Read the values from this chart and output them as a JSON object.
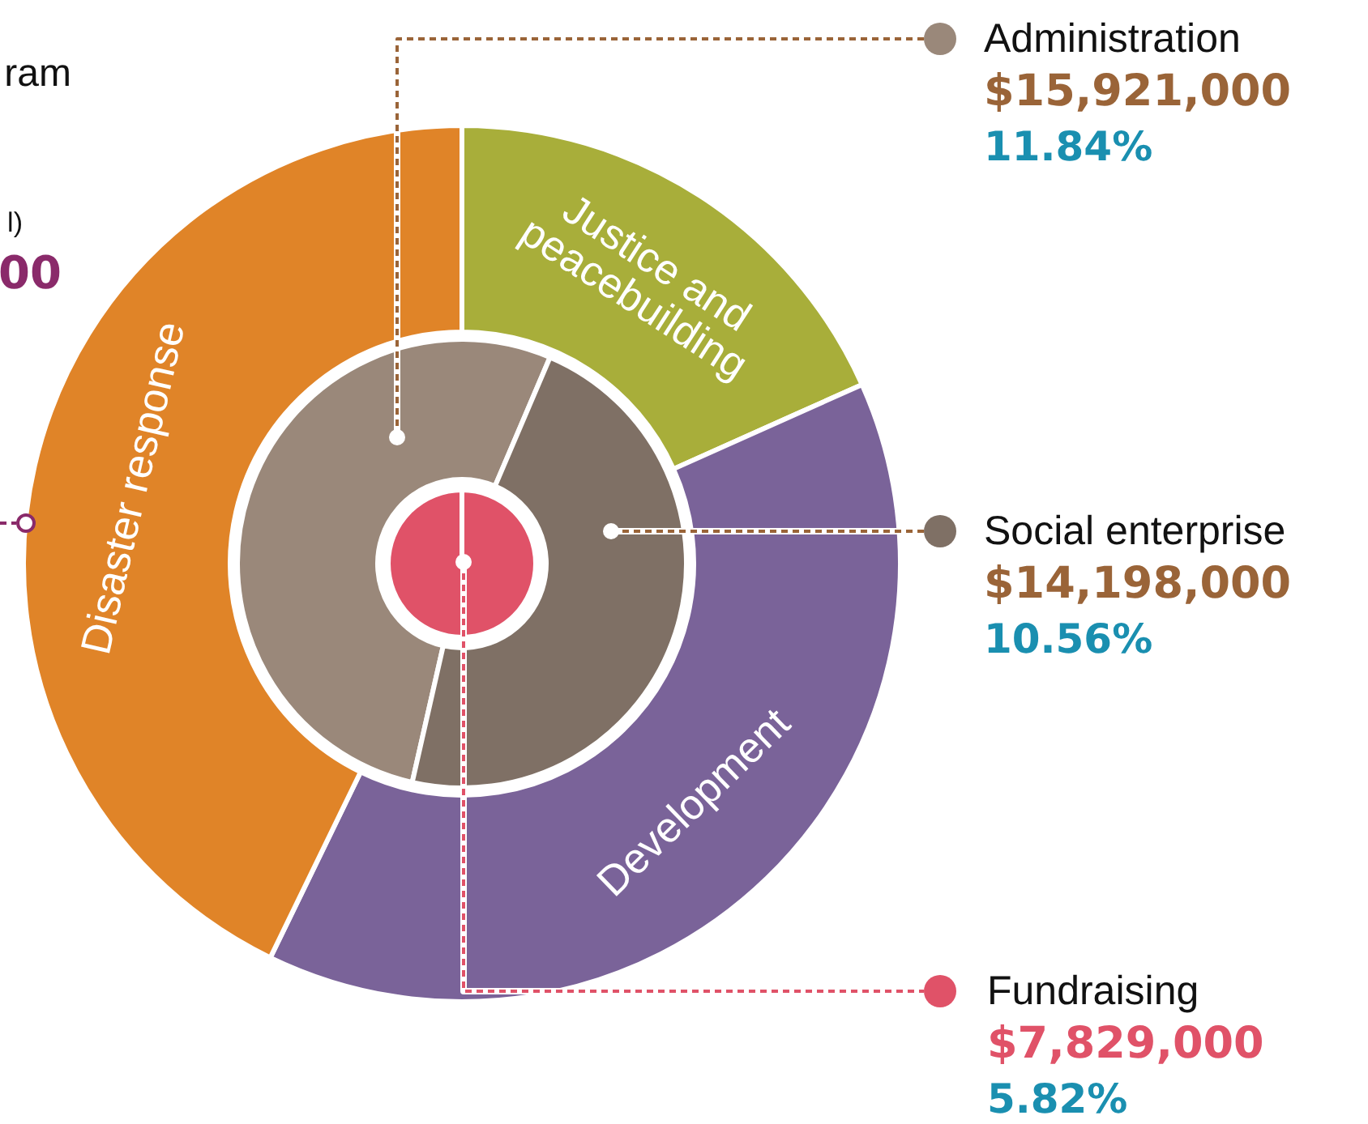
{
  "chart_data": [
    {
      "type": "donut",
      "categories": [
        "Justice and peacebuilding",
        "Development",
        "Disaster response"
      ],
      "values": [
        18.3,
        38.9,
        42.8
      ],
      "colors": [
        "#a8ae3a",
        "#7a6399",
        "#e08428"
      ],
      "annotations": [
        "ram",
        "l)",
        "00"
      ]
    },
    {
      "type": "donut",
      "categories": [
        "Administration",
        "Social enterprise"
      ],
      "values": [
        15921000,
        14198000
      ],
      "colors": [
        "#9a887a",
        "#7f7065"
      ],
      "value_labels": [
        "$15,921,000",
        "$14,198,000"
      ],
      "annotations": [
        "11.84%",
        "10.56%"
      ],
      "legend": "right"
    },
    {
      "type": "pie",
      "categories": [
        "Fundraising"
      ],
      "values": [
        7829000
      ],
      "colors": [
        "#e05268"
      ],
      "value_labels": [
        "$7,829,000"
      ],
      "annotations": [
        "5.82%"
      ],
      "legend": "right"
    }
  ]
}
